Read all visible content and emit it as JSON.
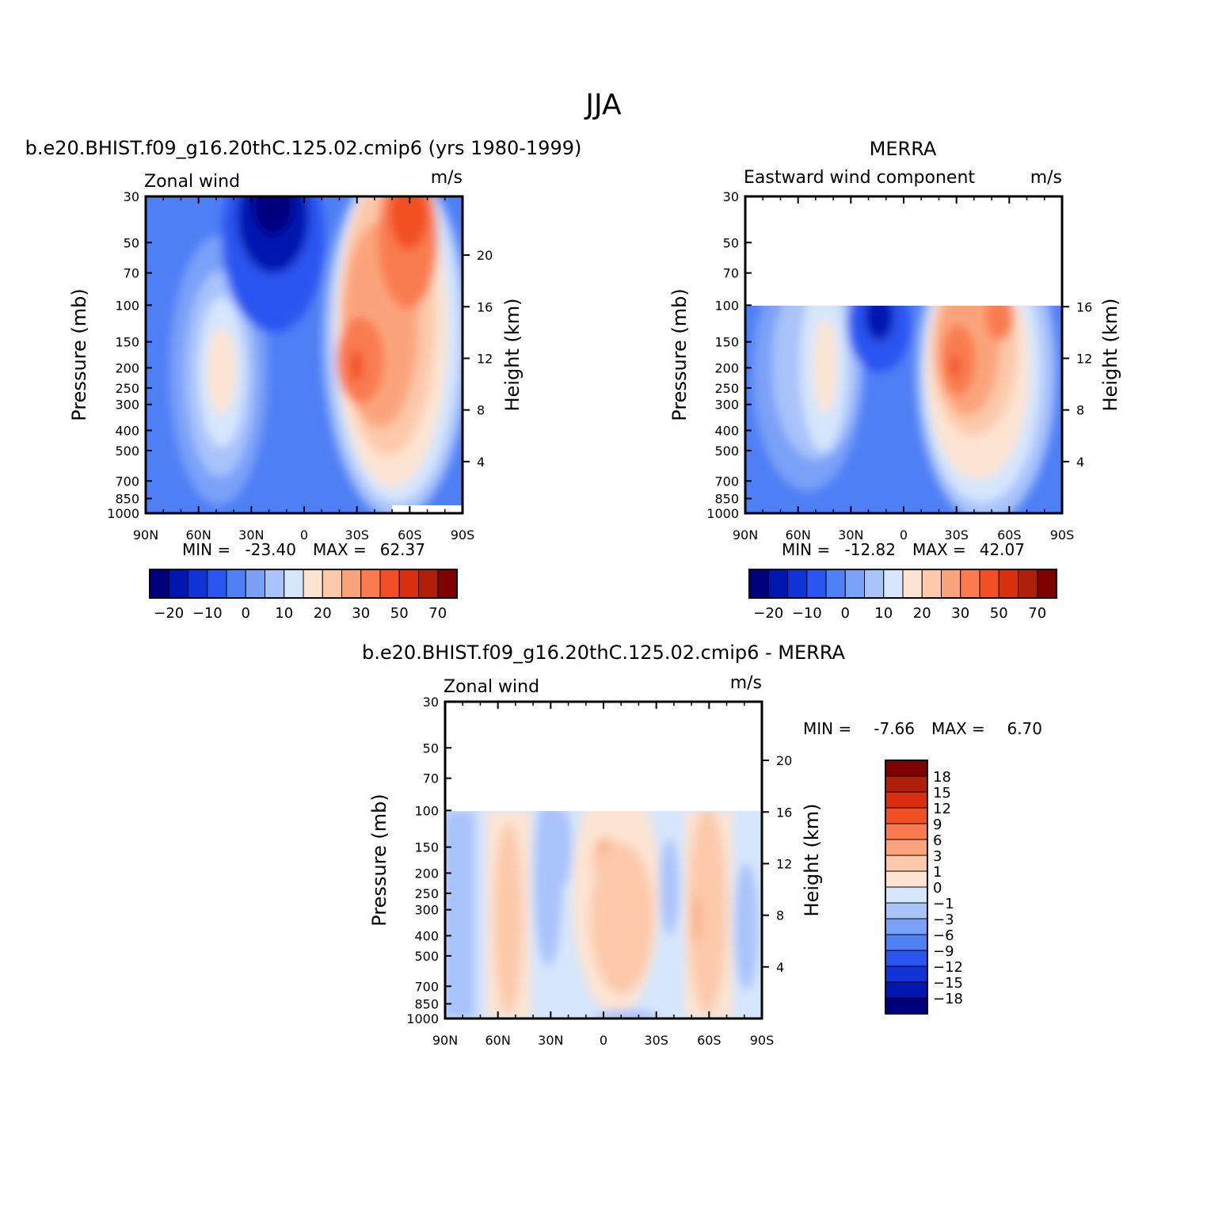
{
  "figure": {
    "title": "JJA"
  },
  "colors": {
    "diverging_palette": [
      "#00007f",
      "#0016b0",
      "#0f33d6",
      "#2a55f0",
      "#4f7ff5",
      "#7aa1f8",
      "#a9c3fb",
      "#d6e6fc",
      "#fde4d2",
      "#fcc9aa",
      "#fba47c",
      "#f97b4f",
      "#f25024",
      "#d92f0f",
      "#b01f0a",
      "#7f0000"
    ],
    "main_levels": [
      "-20",
      "-10",
      "0",
      "10",
      "20",
      "30",
      "50",
      "70"
    ],
    "diff_levels": [
      "18",
      "15",
      "12",
      "9",
      "6",
      "3",
      "1",
      "0",
      "-1",
      "-3",
      "-6",
      "-9",
      "-12",
      "-15",
      "-18"
    ]
  },
  "chart_data": [
    {
      "type": "heatmap",
      "id": "model",
      "title": "b.e20.BHIST.f09_g16.20thC.125.02.cmip6 (yrs 1980-1999)",
      "left_label": "Zonal wind",
      "units": "m/s",
      "ylabel": "Pressure (mb)",
      "ylabel_right": "Height (km)",
      "x_tick_labels": [
        "90N",
        "60N",
        "30N",
        "0",
        "30S",
        "60S",
        "90S"
      ],
      "y_tick_labels": [
        "30",
        "50",
        "70",
        "100",
        "150",
        "200",
        "250",
        "300",
        "400",
        "500",
        "700",
        "850",
        "1000"
      ],
      "height_tick_labels": [
        "20",
        "16",
        "12",
        "8",
        "4"
      ],
      "x_range": [
        90,
        -90
      ],
      "y_range": [
        30,
        1000
      ],
      "log_pressure_axis": true,
      "min_label": "MIN =",
      "min_value": "-23.40",
      "max_label": "MAX =",
      "max_value": "62.37",
      "features": [
        {
          "kind": "jet",
          "lat": -44,
          "p_top": 30,
          "p_bottom": 800,
          "peak": 62.37,
          "note": "southern hemisphere westerly jet"
        },
        {
          "kind": "jet",
          "lat": 42,
          "p_top": 100,
          "p_bottom": 500,
          "peak": 20,
          "note": "northern midlatitude westerly"
        },
        {
          "kind": "easterly",
          "lat": 15,
          "p_top": 30,
          "p_bottom": 100,
          "peak": -23.4
        }
      ]
    },
    {
      "type": "heatmap",
      "id": "merra",
      "title": "MERRA",
      "left_label": "Eastward wind component",
      "units": "m/s",
      "ylabel": "Pressure (mb)",
      "ylabel_right": "Height (km)",
      "x_tick_labels": [
        "90N",
        "60N",
        "30N",
        "0",
        "30S",
        "60S",
        "90S"
      ],
      "y_tick_labels": [
        "30",
        "50",
        "70",
        "100",
        "150",
        "200",
        "250",
        "300",
        "400",
        "500",
        "700",
        "850",
        "1000"
      ],
      "height_tick_labels": [
        "16",
        "12",
        "8",
        "4"
      ],
      "x_range": [
        90,
        -90
      ],
      "y_range": [
        30,
        1000
      ],
      "data_top_pressure": 100,
      "log_pressure_axis": true,
      "min_label": "MIN =",
      "min_value": "-12.82",
      "max_label": "MAX =",
      "max_value": "42.07"
    },
    {
      "type": "heatmap",
      "id": "diff",
      "title": "b.e20.BHIST.f09_g16.20thC.125.02.cmip6 - MERRA",
      "left_label": "Zonal wind",
      "units": "m/s",
      "ylabel": "Pressure (mb)",
      "ylabel_right": "Height (km)",
      "x_tick_labels": [
        "90N",
        "60N",
        "30N",
        "0",
        "30S",
        "60S",
        "90S"
      ],
      "y_tick_labels": [
        "30",
        "50",
        "70",
        "100",
        "150",
        "200",
        "250",
        "300",
        "400",
        "500",
        "700",
        "850",
        "1000"
      ],
      "height_tick_labels": [
        "20",
        "16",
        "12",
        "8",
        "4"
      ],
      "x_range": [
        90,
        -90
      ],
      "y_range": [
        30,
        1000
      ],
      "data_top_pressure": 100,
      "log_pressure_axis": true,
      "min_label": "MIN =",
      "min_value": "-7.66",
      "max_label": "MAX =",
      "max_value": "6.70"
    }
  ]
}
